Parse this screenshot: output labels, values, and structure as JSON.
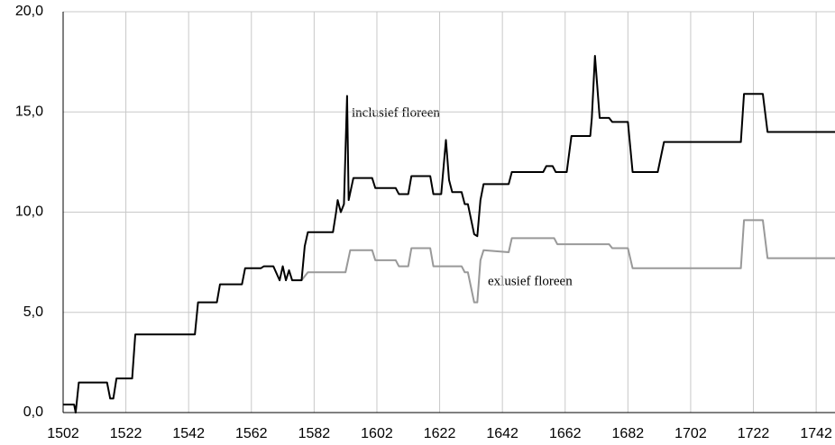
{
  "chart_data": {
    "type": "line",
    "xlim": [
      1502,
      1748
    ],
    "xticks": [
      1502,
      1522,
      1542,
      1562,
      1582,
      1602,
      1622,
      1642,
      1662,
      1682,
      1702,
      1722,
      1742
    ],
    "ylim": [
      0,
      20
    ],
    "yticks": [
      {
        "value": 0,
        "label": "0,0"
      },
      {
        "value": 5,
        "label": "5,0"
      },
      {
        "value": 10,
        "label": "10,0"
      },
      {
        "value": 15,
        "label": "15,0"
      },
      {
        "value": 20,
        "label": "20,0"
      }
    ],
    "grid": true,
    "series": [
      {
        "name": "inclusief floreen",
        "color": "#000000",
        "x": [
          1502,
          1505.5,
          1506,
          1507,
          1516,
          1517,
          1518,
          1519,
          1524,
          1525,
          1544,
          1545,
          1551,
          1552,
          1559,
          1560,
          1565,
          1566,
          1569,
          1571,
          1572,
          1573,
          1574,
          1575,
          1578,
          1579,
          1580,
          1588,
          1589,
          1589.5,
          1590.5,
          1591.5,
          1592.5,
          1593,
          1594.5,
          1600.5,
          1601.5,
          1608,
          1609,
          1612,
          1613,
          1619,
          1620,
          1622.5,
          1624,
          1625,
          1626,
          1629,
          1630,
          1631,
          1633,
          1634,
          1635,
          1636,
          1644,
          1645,
          1655,
          1656,
          1658,
          1659,
          1662.5,
          1664,
          1670,
          1670.5,
          1671.5,
          1673,
          1676,
          1677,
          1682,
          1683.5,
          1691.5,
          1693.5,
          1718,
          1719,
          1725,
          1726.5,
          1748
        ],
        "values": [
          0.4,
          0.4,
          0,
          1.5,
          1.5,
          0.7,
          0.7,
          1.7,
          1.7,
          3.9,
          3.9,
          5.5,
          5.5,
          6.4,
          6.4,
          7.2,
          7.2,
          7.3,
          7.3,
          6.6,
          7.3,
          6.6,
          7.1,
          6.6,
          6.6,
          8.3,
          9,
          9,
          10,
          10.6,
          10,
          10.4,
          15.8,
          10.6,
          11.7,
          11.7,
          11.2,
          11.2,
          10.9,
          10.9,
          11.8,
          11.8,
          10.9,
          10.9,
          13.6,
          11.6,
          11,
          11,
          10.4,
          10.4,
          8.9,
          8.8,
          10.6,
          11.4,
          11.4,
          12,
          12,
          12.3,
          12.3,
          12,
          12,
          13.8,
          13.8,
          14.7,
          17.8,
          14.7,
          14.7,
          14.5,
          14.5,
          12,
          12,
          13.5,
          13.5,
          15.9,
          15.9,
          14,
          14
        ]
      },
      {
        "name": "exlusief floreen",
        "color": "#999999",
        "x": [
          1578,
          1580,
          1592,
          1593.5,
          1600.5,
          1601.5,
          1608,
          1609,
          1612,
          1613,
          1619,
          1620,
          1629,
          1630,
          1631,
          1633,
          1634,
          1635,
          1636,
          1644,
          1645,
          1658.5,
          1659.5,
          1676,
          1677,
          1682,
          1683.5,
          1718,
          1719,
          1725,
          1726.5,
          1748
        ],
        "values": [
          6.6,
          7,
          7,
          8.1,
          8.1,
          7.6,
          7.6,
          7.3,
          7.3,
          8.2,
          8.2,
          7.3,
          7.3,
          7,
          7,
          5.5,
          5.5,
          7.6,
          8.1,
          8,
          8.7,
          8.7,
          8.4,
          8.4,
          8.2,
          8.2,
          7.2,
          7.2,
          9.6,
          9.6,
          7.7,
          7.7
        ]
      }
    ]
  }
}
